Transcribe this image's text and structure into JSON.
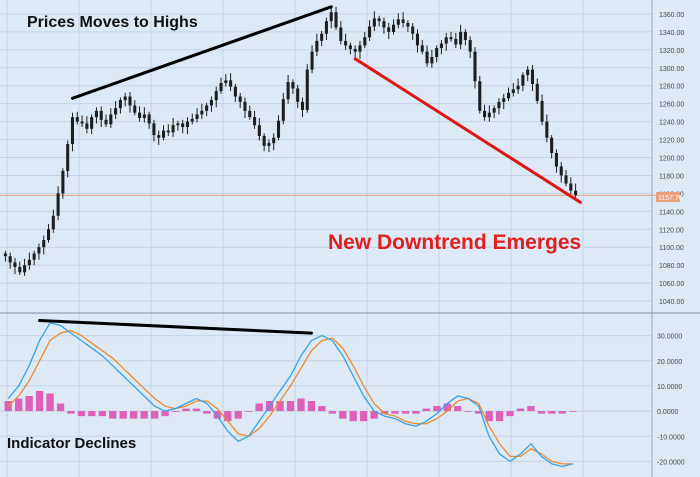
{
  "annotations": {
    "top_left": "Prices Moves to Highs",
    "downtrend": "New Downtrend Emerges",
    "indicator": "Indicator Declines"
  },
  "current_price_label": "1157.76",
  "colors": {
    "background": "#dde9f5",
    "grid": "#c3d3e5",
    "candle": "#1e1e1e",
    "price_line": "#e9a07a",
    "macd": "#3aa3e0",
    "signal": "#ee8a2e",
    "histogram": "#dd5fb9",
    "black_trend": "#000000",
    "red_trend": "#e01515",
    "red_text": "#e02020"
  },
  "chart_data": [
    {
      "type": "candlestick",
      "panel": "price",
      "ylim": [
        1030,
        1370
      ],
      "y_ticks": [
        "1040.00",
        "1060.00",
        "1080.00",
        "1100.00",
        "1120.00",
        "1140.00",
        "1160.00",
        "1180.00",
        "1200.00",
        "1220.00",
        "1240.00",
        "1260.00",
        "1280.00",
        "1300.00",
        "1320.00",
        "1340.00",
        "1360.00"
      ],
      "n_bars": 120,
      "closes_approx": [
        1090,
        1083,
        1078,
        1072,
        1080,
        1086,
        1093,
        1100,
        1108,
        1120,
        1135,
        1160,
        1185,
        1215,
        1245,
        1240,
        1238,
        1232,
        1245,
        1252,
        1242,
        1237,
        1248,
        1255,
        1264,
        1268,
        1258,
        1250,
        1244,
        1248,
        1238,
        1225,
        1222,
        1230,
        1228,
        1236,
        1238,
        1234,
        1240,
        1243,
        1248,
        1252,
        1258,
        1264,
        1274,
        1283,
        1286,
        1279,
        1268,
        1262,
        1252,
        1245,
        1236,
        1224,
        1213,
        1216,
        1222,
        1241,
        1265,
        1284,
        1277,
        1262,
        1253,
        1298,
        1318,
        1330,
        1338,
        1352,
        1362,
        1345,
        1330,
        1325,
        1321,
        1318,
        1325,
        1334,
        1346,
        1355,
        1352,
        1345,
        1340,
        1348,
        1354,
        1350,
        1346,
        1338,
        1325,
        1318,
        1305,
        1312,
        1322,
        1327,
        1334,
        1332,
        1326,
        1340,
        1331,
        1318,
        1285,
        1252,
        1245,
        1250,
        1255,
        1262,
        1266,
        1272,
        1276,
        1280,
        1292,
        1298,
        1282,
        1263,
        1240,
        1222,
        1205,
        1190,
        1180,
        1171,
        1163,
        1158
      ],
      "last_price": 1157.76,
      "annotation_lines": [
        {
          "name": "highs-trendline",
          "from": {
            "bar": 14,
            "price": 1266
          },
          "to": {
            "bar": 68,
            "price": 1368
          },
          "color": "black"
        },
        {
          "name": "downtrend-line",
          "from": {
            "bar": 73,
            "price": 1310
          },
          "to": {
            "bar": 120,
            "price": 1150
          },
          "color": "red"
        }
      ]
    },
    {
      "type": "line+bar",
      "panel": "indicator",
      "ylim": [
        -25,
        37
      ],
      "y_ticks": [
        "30.0000",
        "20.0000",
        "10.0000",
        "0.0000",
        "-10.0000",
        "-20.0000"
      ],
      "series": [
        {
          "key": "macd",
          "values": [
            5,
            10,
            18,
            28,
            35,
            34,
            31,
            28,
            25,
            22,
            18,
            14,
            10,
            6,
            2,
            0,
            1,
            3,
            5,
            3,
            -2,
            -8,
            -12,
            -10,
            -4,
            2,
            8,
            14,
            22,
            28,
            30,
            28,
            22,
            14,
            6,
            0,
            -2,
            -3,
            -5,
            -6,
            -4,
            -1,
            3,
            6,
            5,
            2,
            -10,
            -17,
            -20,
            -17,
            -13,
            -18,
            -21,
            -22,
            -21
          ]
        },
        {
          "key": "signal",
          "values": [
            2,
            6,
            12,
            20,
            28,
            31,
            32,
            30,
            27,
            24,
            21,
            17,
            13,
            9,
            5,
            2,
            1,
            2,
            4,
            4,
            1,
            -4,
            -9,
            -10,
            -7,
            -2,
            4,
            10,
            17,
            24,
            28,
            29,
            25,
            18,
            10,
            3,
            -1,
            -2,
            -4,
            -5,
            -5,
            -3,
            0,
            4,
            5,
            3,
            -6,
            -13,
            -18,
            -18,
            -15,
            -17,
            -20,
            -21,
            -21
          ]
        },
        {
          "key": "histogram",
          "values": [
            4,
            5,
            6,
            8,
            7,
            3,
            -1,
            -2,
            -2,
            -2,
            -3,
            -3,
            -3,
            -3,
            -3,
            -2,
            0,
            1,
            1,
            -1,
            -3,
            -4,
            -3,
            0,
            3,
            4,
            4,
            4,
            5,
            4,
            2,
            -1,
            -3,
            -4,
            -4,
            -3,
            -1,
            -1,
            -1,
            -1,
            1,
            2,
            3,
            2,
            0,
            -1,
            -4,
            -4,
            -2,
            1,
            2,
            -1,
            -1,
            -1,
            0
          ]
        }
      ],
      "annotation_lines": [
        {
          "name": "indicator-trendline",
          "from": {
            "index": 3,
            "value": 36
          },
          "to": {
            "index": 29,
            "value": 31
          },
          "color": "black"
        }
      ]
    }
  ]
}
